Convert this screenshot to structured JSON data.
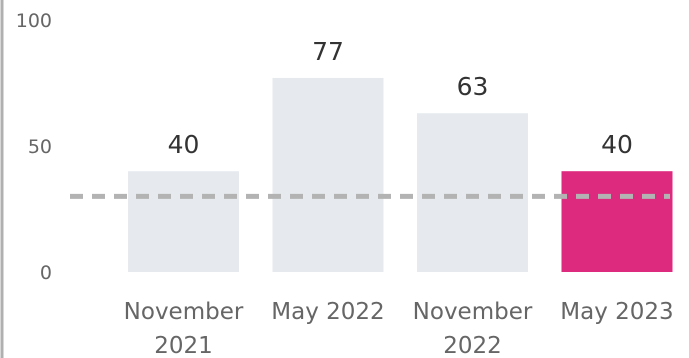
{
  "chart_data": {
    "type": "bar",
    "categories": [
      [
        "November",
        "2021"
      ],
      [
        "May 2022"
      ],
      [
        "November",
        "2022"
      ],
      [
        "May 2023"
      ]
    ],
    "values": [
      40,
      77,
      63,
      40
    ],
    "data_labels": [
      "40",
      "77",
      "63",
      "40"
    ],
    "yticks": [
      0,
      50,
      100
    ],
    "ytick_labels": [
      "0",
      "50",
      "100"
    ],
    "ylim": [
      0,
      100
    ],
    "reference_line": 30,
    "colors": {
      "bar_default": "#e6eaee",
      "bar_highlight": "#dd2a7f",
      "reference_line": "#b3b3b3",
      "left_axis": "#b0b0b0"
    },
    "highlight_index": 3,
    "grid": false,
    "legend": "none"
  }
}
